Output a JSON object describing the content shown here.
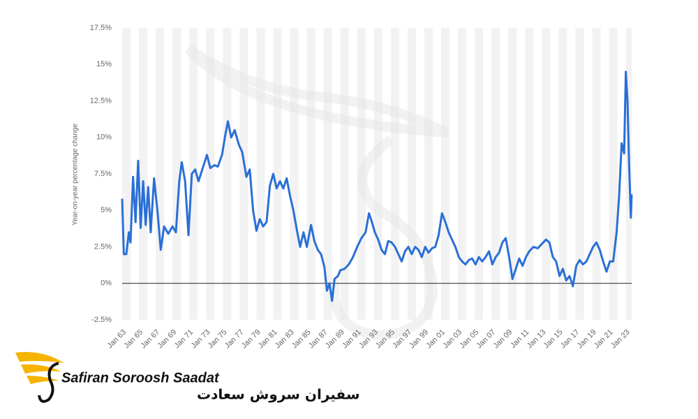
{
  "chart_data": {
    "type": "line",
    "y_label": "Year-on-year percentage change",
    "color": "#2a6fd6",
    "grid": false,
    "xlim": [
      1963,
      2023.7
    ],
    "ylim": [
      -2.5,
      17.5
    ],
    "yticks": [
      {
        "value": -2.5,
        "label": "-2.5%"
      },
      {
        "value": 0,
        "label": "0%"
      },
      {
        "value": 2.5,
        "label": "2.5%"
      },
      {
        "value": 5,
        "label": "5%"
      },
      {
        "value": 7.5,
        "label": "7.5%"
      },
      {
        "value": 10,
        "label": "10%"
      },
      {
        "value": 12.5,
        "label": "12.5%"
      },
      {
        "value": 15,
        "label": "15%"
      },
      {
        "value": 17.5,
        "label": "17.5%"
      }
    ],
    "xticks": [
      {
        "value": 1963,
        "label": "Jan 63"
      },
      {
        "value": 1965,
        "label": "Jan 65"
      },
      {
        "value": 1967,
        "label": "Jan 67"
      },
      {
        "value": 1969,
        "label": "Jan 69"
      },
      {
        "value": 1971,
        "label": "Jan 71"
      },
      {
        "value": 1973,
        "label": "Jan 73"
      },
      {
        "value": 1975,
        "label": "Jan 75"
      },
      {
        "value": 1977,
        "label": "Jan 77"
      },
      {
        "value": 1979,
        "label": "Jan 79"
      },
      {
        "value": 1981,
        "label": "Jan 81"
      },
      {
        "value": 1983,
        "label": "Jan 83"
      },
      {
        "value": 1985,
        "label": "Jan 85"
      },
      {
        "value": 1987,
        "label": "Jan 87"
      },
      {
        "value": 1989,
        "label": "Jan 89"
      },
      {
        "value": 1991,
        "label": "Jan 91"
      },
      {
        "value": 1993,
        "label": "Jan 93"
      },
      {
        "value": 1995,
        "label": "Jan 95"
      },
      {
        "value": 1997,
        "label": "Jan 97"
      },
      {
        "value": 1999,
        "label": "Jan 99"
      },
      {
        "value": 2001,
        "label": "Jan 01"
      },
      {
        "value": 2003,
        "label": "Jan 03"
      },
      {
        "value": 2005,
        "label": "Jan 05"
      },
      {
        "value": 2007,
        "label": "Jan 07"
      },
      {
        "value": 2009,
        "label": "Jan 09"
      },
      {
        "value": 2011,
        "label": "Jan 11"
      },
      {
        "value": 2013,
        "label": "Jan 13"
      },
      {
        "value": 2015,
        "label": "Jan 15"
      },
      {
        "value": 2017,
        "label": "Jan 17"
      },
      {
        "value": 2019,
        "label": "Jan 19"
      },
      {
        "value": 2021,
        "label": "Jan 21"
      },
      {
        "value": 2023,
        "label": "Jan 23"
      }
    ],
    "x": [
      1963.0,
      1963.2,
      1963.5,
      1963.8,
      1964.0,
      1964.3,
      1964.6,
      1964.9,
      1965.2,
      1965.5,
      1965.8,
      1966.1,
      1966.4,
      1966.8,
      1967.2,
      1967.6,
      1968.0,
      1968.5,
      1969.0,
      1969.4,
      1969.8,
      1970.1,
      1970.5,
      1970.9,
      1971.3,
      1971.7,
      1972.1,
      1972.6,
      1973.1,
      1973.5,
      1974.0,
      1974.4,
      1974.9,
      1975.3,
      1975.6,
      1976.0,
      1976.4,
      1976.9,
      1977.3,
      1977.8,
      1978.2,
      1978.6,
      1979.0,
      1979.4,
      1979.8,
      1980.2,
      1980.6,
      1981.0,
      1981.4,
      1981.8,
      1982.2,
      1982.6,
      1983.0,
      1983.4,
      1983.8,
      1984.2,
      1984.6,
      1985.0,
      1985.5,
      1985.9,
      1986.3,
      1986.7,
      1987.1,
      1987.4,
      1987.7,
      1988.0,
      1988.3,
      1988.7,
      1989.0,
      1989.5,
      1990.0,
      1990.5,
      1991.0,
      1991.5,
      1992.0,
      1992.4,
      1992.7,
      1993.1,
      1993.5,
      1993.9,
      1994.3,
      1994.7,
      1995.1,
      1995.5,
      1995.9,
      1996.3,
      1996.7,
      1997.1,
      1997.5,
      1997.9,
      1998.3,
      1998.7,
      1999.1,
      1999.5,
      1999.9,
      2000.3,
      2000.7,
      2001.1,
      2001.5,
      2001.9,
      2002.3,
      2002.7,
      2003.1,
      2003.5,
      2003.9,
      2004.3,
      2004.7,
      2005.1,
      2005.5,
      2005.9,
      2006.3,
      2006.7,
      2007.1,
      2007.5,
      2007.9,
      2008.3,
      2008.7,
      2009.1,
      2009.5,
      2009.9,
      2010.3,
      2010.7,
      2011.1,
      2011.5,
      2012.0,
      2012.5,
      2013.0,
      2013.5,
      2013.9,
      2014.3,
      2014.7,
      2015.1,
      2015.5,
      2015.9,
      2016.3,
      2016.7,
      2017.1,
      2017.5,
      2017.9,
      2018.3,
      2018.7,
      2019.1,
      2019.5,
      2019.9,
      2020.3,
      2020.7,
      2021.1,
      2021.5,
      2021.9,
      2022.2,
      2022.5,
      2022.8,
      2023.0,
      2023.2,
      2023.4,
      2023.6,
      2023.7
    ],
    "values": [
      5.8,
      2.0,
      2.0,
      3.5,
      2.8,
      7.3,
      4.2,
      8.4,
      3.8,
      7.0,
      4.0,
      6.6,
      3.5,
      7.2,
      5.0,
      2.3,
      3.9,
      3.4,
      3.9,
      3.5,
      7.0,
      8.3,
      7.0,
      3.3,
      7.5,
      7.8,
      7.0,
      7.9,
      8.8,
      7.9,
      8.1,
      8.0,
      8.8,
      10.2,
      11.1,
      10.0,
      10.5,
      9.5,
      9.0,
      7.3,
      7.8,
      5.0,
      3.6,
      4.4,
      3.9,
      4.2,
      6.7,
      7.5,
      6.5,
      7.0,
      6.5,
      7.2,
      6.0,
      5.0,
      3.7,
      2.5,
      3.5,
      2.5,
      4.0,
      2.9,
      2.3,
      2.0,
      1.1,
      -0.5,
      0.0,
      -1.2,
      0.3,
      0.5,
      0.9,
      1.0,
      1.3,
      1.8,
      2.5,
      3.1,
      3.5,
      4.8,
      4.3,
      3.5,
      3.0,
      2.3,
      2.0,
      2.9,
      2.8,
      2.5,
      2.0,
      1.5,
      2.2,
      2.5,
      2.0,
      2.5,
      2.3,
      1.8,
      2.5,
      2.1,
      2.4,
      2.5,
      3.3,
      4.8,
      4.2,
      3.5,
      3.0,
      2.5,
      1.8,
      1.5,
      1.3,
      1.6,
      1.7,
      1.3,
      1.8,
      1.5,
      1.8,
      2.2,
      1.3,
      1.8,
      2.1,
      2.8,
      3.1,
      1.8,
      0.3,
      1.0,
      1.7,
      1.2,
      1.8,
      2.2,
      2.5,
      2.4,
      2.7,
      3.0,
      2.8,
      1.8,
      1.5,
      0.5,
      1.0,
      0.2,
      0.5,
      -0.2,
      1.2,
      1.6,
      1.3,
      1.5,
      2.0,
      2.5,
      2.8,
      2.3,
      1.5,
      0.8,
      1.5,
      1.5,
      3.5,
      6.0,
      9.6,
      8.9,
      14.5,
      12.5,
      8.0,
      4.5,
      6.1
    ]
  },
  "brand": {
    "name": "Safiran Soroosh Saadat",
    "name_fa": "سفیران سروش سعادت"
  }
}
